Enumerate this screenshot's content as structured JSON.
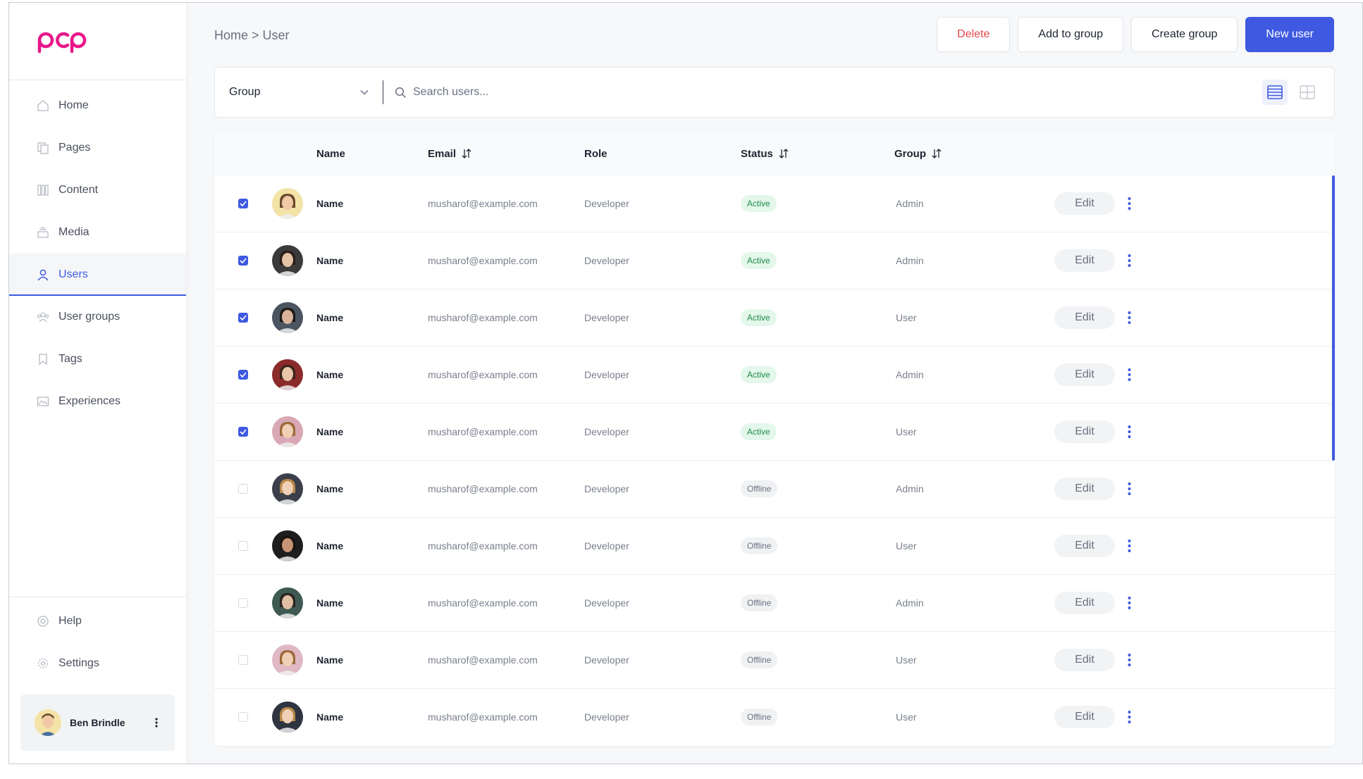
{
  "brand": {
    "logo_text": "pcp",
    "color": "#e8178a"
  },
  "sidebar": {
    "items": [
      {
        "label": "Home",
        "icon": "home-icon",
        "active": false
      },
      {
        "label": "Pages",
        "icon": "pages-icon",
        "active": false
      },
      {
        "label": "Content",
        "icon": "content-icon",
        "active": false
      },
      {
        "label": "Media",
        "icon": "media-icon",
        "active": false
      },
      {
        "label": "Users",
        "icon": "user-icon",
        "active": true
      },
      {
        "label": "User groups",
        "icon": "user-groups-icon",
        "active": false
      },
      {
        "label": "Tags",
        "icon": "tag-icon",
        "active": false
      },
      {
        "label": "Experiences",
        "icon": "experiences-icon",
        "active": false
      }
    ],
    "bottom_items": [
      {
        "label": "Help",
        "icon": "help-icon"
      },
      {
        "label": "Settings",
        "icon": "gear-icon"
      }
    ],
    "current_user": {
      "name": "Ben Brindle"
    }
  },
  "header": {
    "breadcrumb": "Home > User",
    "buttons": {
      "delete": "Delete",
      "add_to_group": "Add to group",
      "create_group": "Create group",
      "new_user": "New user"
    }
  },
  "filter": {
    "group_label": "Group",
    "search_placeholder": "Search users..."
  },
  "table": {
    "columns": {
      "name": "Name",
      "email": "Email",
      "role": "Role",
      "status": "Status",
      "group": "Group"
    },
    "edit_label": "Edit",
    "rows": [
      {
        "checked": true,
        "name": "Name",
        "email": "musharof@example.com",
        "role": "Developer",
        "status": "Active",
        "group": "Admin",
        "avatar_bg": "#f3e3a6",
        "avatar_skin": "#f1c9a5",
        "avatar_hair": "#6b4a2e"
      },
      {
        "checked": true,
        "name": "Name",
        "email": "musharof@example.com",
        "role": "Developer",
        "status": "Active",
        "group": "Admin",
        "avatar_bg": "#3b3b3b",
        "avatar_skin": "#e6c2a6",
        "avatar_hair": "#2a1e18"
      },
      {
        "checked": true,
        "name": "Name",
        "email": "musharof@example.com",
        "role": "Developer",
        "status": "Active",
        "group": "User",
        "avatar_bg": "#4a5561",
        "avatar_skin": "#d9b49a",
        "avatar_hair": "#1e1a18"
      },
      {
        "checked": true,
        "name": "Name",
        "email": "musharof@example.com",
        "role": "Developer",
        "status": "Active",
        "group": "Admin",
        "avatar_bg": "#8a2a2a",
        "avatar_skin": "#e8c4a8",
        "avatar_hair": "#3a2418"
      },
      {
        "checked": true,
        "name": "Name",
        "email": "musharof@example.com",
        "role": "Developer",
        "status": "Active",
        "group": "User",
        "avatar_bg": "#d9a8b4",
        "avatar_skin": "#f0cfb4",
        "avatar_hair": "#9a6a3a"
      },
      {
        "checked": false,
        "name": "Name",
        "email": "musharof@example.com",
        "role": "Developer",
        "status": "Offline",
        "group": "Admin",
        "avatar_bg": "#3a3f4a",
        "avatar_skin": "#f0d0b6",
        "avatar_hair": "#b8894a"
      },
      {
        "checked": false,
        "name": "Name",
        "email": "musharof@example.com",
        "role": "Developer",
        "status": "Offline",
        "group": "User",
        "avatar_bg": "#1e1e1e",
        "avatar_skin": "#c69474",
        "avatar_hair": "#1a1410"
      },
      {
        "checked": false,
        "name": "Name",
        "email": "musharof@example.com",
        "role": "Developer",
        "status": "Offline",
        "group": "Admin",
        "avatar_bg": "#3f5a52",
        "avatar_skin": "#e0bfa4",
        "avatar_hair": "#2a2520"
      },
      {
        "checked": false,
        "name": "Name",
        "email": "musharof@example.com",
        "role": "Developer",
        "status": "Offline",
        "group": "User",
        "avatar_bg": "#e0b8c4",
        "avatar_skin": "#f0cfb4",
        "avatar_hair": "#9a6a3a"
      },
      {
        "checked": false,
        "name": "Name",
        "email": "musharof@example.com",
        "role": "Developer",
        "status": "Offline",
        "group": "User",
        "avatar_bg": "#2e3440",
        "avatar_skin": "#f0d0b6",
        "avatar_hair": "#b8894a"
      }
    ]
  },
  "colors": {
    "accent": "#3f5ae0",
    "danger": "#e5484d",
    "active": "#1f8a4c"
  }
}
